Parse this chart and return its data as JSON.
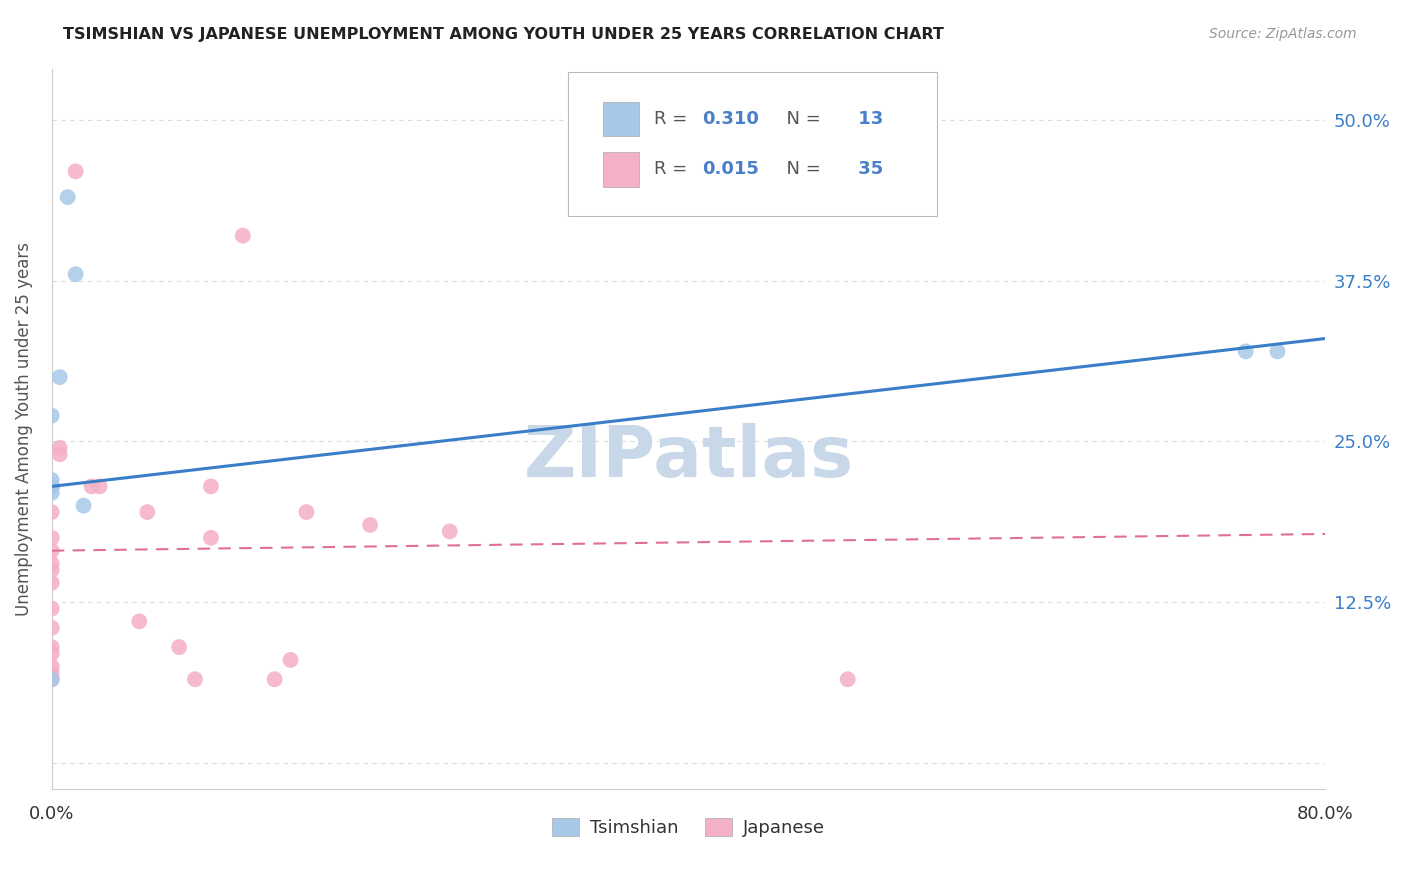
{
  "title": "TSIMSHIAN VS JAPANESE UNEMPLOYMENT AMONG YOUTH UNDER 25 YEARS CORRELATION CHART",
  "source": "Source: ZipAtlas.com",
  "ylabel": "Unemployment Among Youth under 25 years",
  "ytick_positions": [
    0.0,
    0.125,
    0.25,
    0.375,
    0.5
  ],
  "ytick_labels": [
    "",
    "12.5%",
    "25.0%",
    "37.5%",
    "50.0%"
  ],
  "xlim": [
    0.0,
    0.8
  ],
  "ylim": [
    -0.02,
    0.54
  ],
  "tsimshian_x": [
    0.01,
    0.015,
    0.005,
    0.0,
    0.0,
    0.0,
    0.0,
    0.0,
    0.0,
    0.02,
    0.75,
    0.77,
    0.0
  ],
  "tsimshian_y": [
    0.44,
    0.38,
    0.3,
    0.27,
    0.22,
    0.215,
    0.215,
    0.215,
    0.21,
    0.2,
    0.32,
    0.32,
    0.065
  ],
  "japanese_x": [
    0.015,
    0.005,
    0.005,
    0.0,
    0.0,
    0.0,
    0.0,
    0.0,
    0.0,
    0.0,
    0.0,
    0.0,
    0.0,
    0.0,
    0.0,
    0.0,
    0.0,
    0.12,
    0.06,
    0.09,
    0.1,
    0.14,
    0.16,
    0.2,
    0.25,
    0.055,
    0.08,
    0.1,
    0.15,
    0.5,
    0.025,
    0.03,
    0.0,
    0.0,
    0.0
  ],
  "japanese_y": [
    0.46,
    0.245,
    0.24,
    0.215,
    0.215,
    0.215,
    0.215,
    0.195,
    0.175,
    0.165,
    0.155,
    0.15,
    0.14,
    0.12,
    0.105,
    0.09,
    0.07,
    0.41,
    0.195,
    0.065,
    0.175,
    0.065,
    0.195,
    0.185,
    0.18,
    0.11,
    0.09,
    0.215,
    0.08,
    0.065,
    0.215,
    0.215,
    0.065,
    0.075,
    0.085
  ],
  "tsimshian_R": 0.31,
  "tsimshian_N": 13,
  "japanese_R": 0.015,
  "japanese_N": 35,
  "tsimshian_color": "#a8c8e8",
  "japanese_color": "#f4b0c4",
  "tsimshian_line_color": "#3a7ec8",
  "japanese_line_color": "#e07090",
  "background_color": "#ffffff",
  "grid_color": "#dddddd",
  "watermark_text": "ZIPatlas",
  "watermark_color": "#c8d8e8",
  "legend_text_color": "#4a7ec8",
  "tsimshian_trend": [
    0.215,
    0.33
  ],
  "japanese_trend": [
    0.165,
    0.178
  ]
}
